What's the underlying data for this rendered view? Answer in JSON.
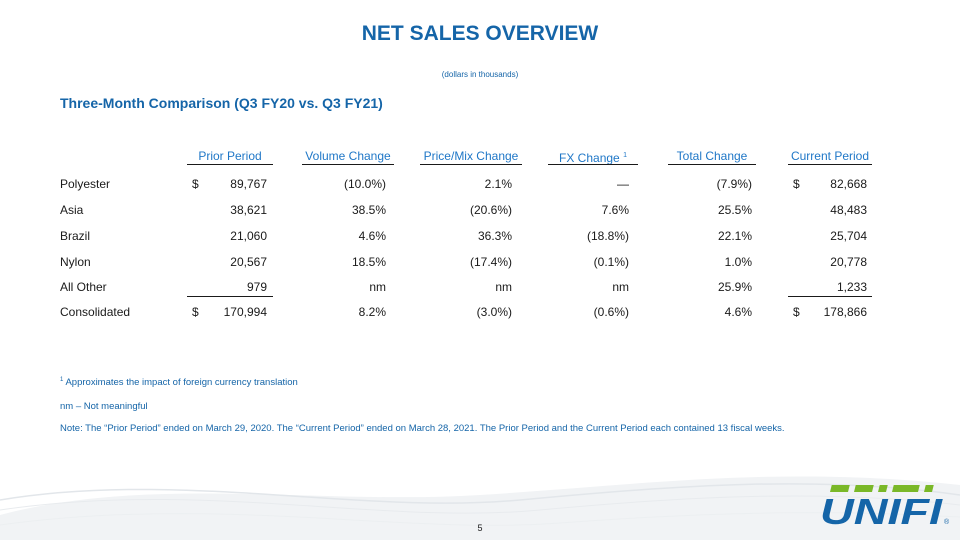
{
  "title": "NET SALES OVERVIEW",
  "subtitle": "(dollars in thousands)",
  "section_title": "Three-Month Comparison (Q3 FY20 vs. Q3 FY21)",
  "table": {
    "columns": [
      "Prior Period",
      "Volume Change",
      "Price/Mix Change",
      "FX Change",
      "Total Change",
      "Current Period"
    ],
    "fx_footnote_marker": "1",
    "currency_symbol": "$",
    "rows": [
      {
        "label": "Polyester",
        "prior": "89,767",
        "volume": "(10.0%)",
        "price_mix": "2.1%",
        "fx": "—",
        "total": "(7.9%)",
        "current": "82,668"
      },
      {
        "label": "Asia",
        "prior": "38,621",
        "volume": "38.5%",
        "price_mix": "(20.6%)",
        "fx": "7.6%",
        "total": "25.5%",
        "current": "48,483"
      },
      {
        "label": "Brazil",
        "prior": "21,060",
        "volume": "4.6%",
        "price_mix": "36.3%",
        "fx": "(18.8%)",
        "total": "22.1%",
        "current": "25,704"
      },
      {
        "label": "Nylon",
        "prior": "20,567",
        "volume": "18.5%",
        "price_mix": "(17.4%)",
        "fx": "(0.1%)",
        "total": "1.0%",
        "current": "20,778"
      },
      {
        "label": "All Other",
        "prior": "979",
        "volume": "nm",
        "price_mix": "nm",
        "fx": "nm",
        "total": "25.9%",
        "current": "1,233"
      },
      {
        "label": "Consolidated",
        "prior": "170,994",
        "volume": "8.2%",
        "price_mix": "(3.0%)",
        "fx": "(0.6%)",
        "total": "4.6%",
        "current": "178,866"
      }
    ]
  },
  "footnotes": {
    "fx_marker": "1",
    "fx_text": "Approximates the impact of foreign currency translation",
    "nm": "nm – Not meaningful",
    "note": "Note: The “Prior Period” ended on March 29, 2020. The “Current Period” ended on March 28, 2021.  The Prior Period and the Current Period each contained 13 fiscal weeks."
  },
  "page_number": "5",
  "logo": {
    "text": "UNIFI",
    "registered": "®",
    "color_top": "#7ab828",
    "color_main": "#1565a8"
  }
}
